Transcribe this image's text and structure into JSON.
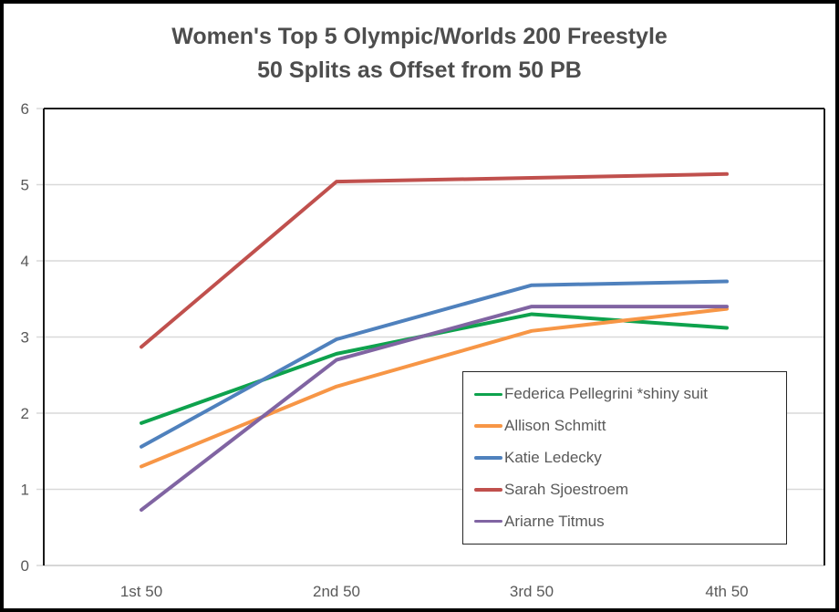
{
  "chart_data": {
    "type": "line",
    "title_line1": "Women's Top 5 Olympic/Worlds 200 Freestyle",
    "title_line2": "50 Splits as Offset from 50 PB",
    "categories": [
      "1st 50",
      "2nd 50",
      "3rd 50",
      "4th 50"
    ],
    "y_ticks": [
      0,
      1,
      2,
      3,
      4,
      5,
      6
    ],
    "ylim": [
      0,
      6
    ],
    "grid": true,
    "legend_position": "inside-bottom-right",
    "series": [
      {
        "name": "Federica Pellegrini *shiny suit",
        "color": "#0EA24D",
        "values": [
          1.87,
          2.78,
          3.3,
          3.12
        ]
      },
      {
        "name": "Allison Schmitt",
        "color": "#F79646",
        "values": [
          1.3,
          2.35,
          3.08,
          3.37
        ]
      },
      {
        "name": "Katie Ledecky",
        "color": "#4F81BD",
        "values": [
          1.56,
          2.97,
          3.68,
          3.73
        ]
      },
      {
        "name": "Sarah Sjoestroem",
        "color": "#C0504D",
        "values": [
          2.87,
          5.04,
          5.09,
          5.14
        ]
      },
      {
        "name": "Ariarne Titmus",
        "color": "#8064A2",
        "values": [
          0.73,
          2.7,
          3.4,
          3.4
        ]
      }
    ],
    "colors": {
      "axis_text": "#595959",
      "gridline": "#D9D9D9",
      "plot_border": "#1a1a1a",
      "bottom_axis": "#c9c9c9",
      "title_text": "#4d4d4d"
    }
  }
}
